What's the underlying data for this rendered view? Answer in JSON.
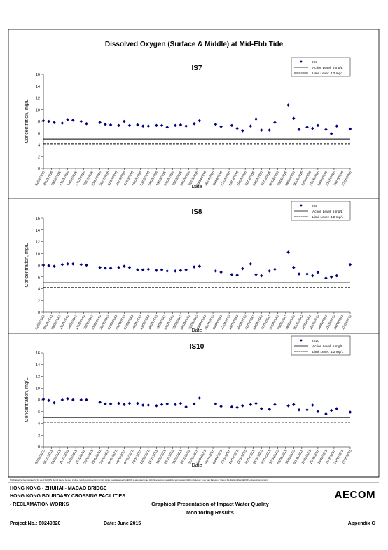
{
  "document": {
    "title": "Dissolved Oxygen (Surface & Middle) at Mid-Ebb Tide"
  },
  "chart_data": [
    {
      "type": "scatter",
      "title": "IS7",
      "xlabel": "Date",
      "ylabel": "Concentration, mg/L",
      "x": [
        "02/02/2015",
        "04/02/2015",
        "06/02/2015",
        "09/02/2015",
        "11/02/2015",
        "13/02/2015",
        "16/02/2015",
        "18/02/2015",
        "23/02/2015",
        "25/02/2015",
        "27/02/2015",
        "02/03/2015",
        "04/03/2015",
        "06/03/2015",
        "09/03/2015",
        "11/03/2015",
        "13/03/2015",
        "16/03/2015",
        "18/03/2015",
        "20/03/2015",
        "23/03/2015",
        "25/03/2015",
        "27/03/2015",
        "30/03/2015",
        "01/04/2015",
        "07/04/2015",
        "09/04/2015",
        "13/04/2015",
        "15/04/2015",
        "17/04/2015",
        "20/04/2015",
        "22/04/2015",
        "24/04/2015",
        "27/04/2015",
        "29/04/2015",
        "04/05/2015",
        "06/05/2015",
        "08/05/2015",
        "11/05/2015",
        "13/05/2015",
        "15/05/2015",
        "18/05/2015",
        "20/05/2015",
        "22/05/2015",
        "27/05/2015"
      ],
      "series": [
        {
          "name": "IS7",
          "color": "#000080",
          "values": [
            8.1,
            8.0,
            7.8,
            7.7,
            8.3,
            8.2,
            8.0,
            7.6,
            7.8,
            7.5,
            7.4,
            7.3,
            8.0,
            7.3,
            7.4,
            7.2,
            7.2,
            7.3,
            7.3,
            7.0,
            7.3,
            7.4,
            7.2,
            7.6,
            8.1,
            7.5,
            7.1,
            7.3,
            6.8,
            6.4,
            7.2,
            8.4,
            6.5,
            6.5,
            7.8,
            10.8,
            8.5,
            6.6,
            7.0,
            6.8,
            7.3,
            6.6,
            5.9,
            7.2,
            6.7
          ]
        }
      ],
      "reference_lines": [
        {
          "name": "Action Level: 5 mg/L",
          "value": 5,
          "style": "solid"
        },
        {
          "name": "Limit Level: 4.2 mg/L",
          "value": 4.2,
          "style": "dashed"
        }
      ],
      "xlim": [
        "02/02/2015",
        "27/05/2015"
      ],
      "xticks": [
        "02/02/2015",
        "05/02/2015",
        "08/02/2015",
        "11/02/2015",
        "14/02/2015",
        "17/02/2015",
        "20/02/2015",
        "23/02/2015",
        "26/02/2015",
        "01/03/2015",
        "04/03/2015",
        "07/03/2015",
        "10/03/2015",
        "13/03/2015",
        "16/03/2015",
        "19/03/2015",
        "22/03/2015",
        "25/03/2015",
        "28/03/2015",
        "31/03/2015",
        "03/04/2015",
        "06/04/2015",
        "09/04/2015",
        "12/04/2015",
        "15/04/2015",
        "18/04/2015",
        "21/04/2015",
        "24/04/2015",
        "27/04/2015",
        "30/04/2015",
        "03/05/2015",
        "06/05/2015",
        "09/05/2015",
        "12/05/2015",
        "15/05/2015",
        "18/05/2015",
        "21/05/2015",
        "24/05/2015",
        "27/05/2015"
      ],
      "ylim": [
        0,
        16
      ],
      "yticks": [
        0,
        2,
        4,
        6,
        8,
        10,
        12,
        14,
        16
      ],
      "legend": "upper right"
    },
    {
      "type": "scatter",
      "title": "IS8",
      "xlabel": "Date",
      "ylabel": "Concentration, mg/L",
      "x": [
        "02/02/2015",
        "04/02/2015",
        "06/02/2015",
        "09/02/2015",
        "11/02/2015",
        "13/02/2015",
        "16/02/2015",
        "18/02/2015",
        "23/02/2015",
        "25/02/2015",
        "27/02/2015",
        "02/03/2015",
        "04/03/2015",
        "06/03/2015",
        "09/03/2015",
        "11/03/2015",
        "13/03/2015",
        "16/03/2015",
        "18/03/2015",
        "20/03/2015",
        "23/03/2015",
        "25/03/2015",
        "27/03/2015",
        "30/03/2015",
        "01/04/2015",
        "07/04/2015",
        "09/04/2015",
        "13/04/2015",
        "15/04/2015",
        "17/04/2015",
        "20/04/2015",
        "22/04/2015",
        "24/04/2015",
        "27/04/2015",
        "29/04/2015",
        "04/05/2015",
        "06/05/2015",
        "08/05/2015",
        "11/05/2015",
        "13/05/2015",
        "15/05/2015",
        "18/05/2015",
        "20/05/2015",
        "22/05/2015",
        "27/05/2015"
      ],
      "series": [
        {
          "name": "IS8",
          "color": "#000080",
          "values": [
            8.0,
            7.9,
            7.8,
            8.1,
            8.2,
            8.2,
            8.1,
            8.0,
            7.6,
            7.5,
            7.5,
            7.6,
            7.8,
            7.6,
            7.2,
            7.2,
            7.3,
            7.1,
            7.2,
            7.0,
            7.0,
            7.1,
            7.2,
            7.7,
            7.8,
            7.0,
            6.8,
            6.4,
            6.3,
            7.4,
            8.2,
            6.4,
            6.2,
            7.0,
            7.3,
            10.2,
            7.6,
            6.5,
            6.5,
            6.2,
            6.8,
            5.8,
            6.0,
            6.2,
            8.1
          ]
        }
      ],
      "reference_lines": [
        {
          "name": "Action Level: 5 mg/L",
          "value": 5,
          "style": "solid"
        },
        {
          "name": "Limit Level: 4.2 mg/L",
          "value": 4.2,
          "style": "dashed"
        }
      ],
      "xlim": [
        "02/02/2015",
        "27/05/2015"
      ],
      "xticks": [
        "02/02/2015",
        "05/02/2015",
        "08/02/2015",
        "11/02/2015",
        "14/02/2015",
        "17/02/2015",
        "20/02/2015",
        "23/02/2015",
        "26/02/2015",
        "01/03/2015",
        "04/03/2015",
        "07/03/2015",
        "10/03/2015",
        "13/03/2015",
        "16/03/2015",
        "19/03/2015",
        "22/03/2015",
        "25/03/2015",
        "28/03/2015",
        "31/03/2015",
        "03/04/2015",
        "06/04/2015",
        "09/04/2015",
        "12/04/2015",
        "15/04/2015",
        "18/04/2015",
        "21/04/2015",
        "24/04/2015",
        "27/04/2015",
        "30/04/2015",
        "03/05/2015",
        "06/05/2015",
        "09/05/2015",
        "12/05/2015",
        "15/05/2015",
        "18/05/2015",
        "21/05/2015",
        "24/05/2015",
        "27/05/2015"
      ],
      "ylim": [
        0,
        16
      ],
      "yticks": [
        0,
        2,
        4,
        6,
        8,
        10,
        12,
        14,
        16
      ],
      "legend": "upper right"
    },
    {
      "type": "scatter",
      "title": "IS10",
      "xlabel": "Date",
      "ylabel": "Concentration, mg/L",
      "x": [
        "02/02/2015",
        "04/02/2015",
        "06/02/2015",
        "09/02/2015",
        "11/02/2015",
        "13/02/2015",
        "16/02/2015",
        "18/02/2015",
        "23/02/2015",
        "25/02/2015",
        "27/02/2015",
        "02/03/2015",
        "04/03/2015",
        "06/03/2015",
        "09/03/2015",
        "11/03/2015",
        "13/03/2015",
        "16/03/2015",
        "18/03/2015",
        "20/03/2015",
        "23/03/2015",
        "25/03/2015",
        "27/03/2015",
        "30/03/2015",
        "01/04/2015",
        "07/04/2015",
        "09/04/2015",
        "13/04/2015",
        "15/04/2015",
        "17/04/2015",
        "20/04/2015",
        "22/04/2015",
        "24/04/2015",
        "27/04/2015",
        "29/04/2015",
        "04/05/2015",
        "06/05/2015",
        "08/05/2015",
        "11/05/2015",
        "13/05/2015",
        "15/05/2015",
        "18/05/2015",
        "20/05/2015",
        "22/05/2015",
        "27/05/2015"
      ],
      "series": [
        {
          "name": "IS10",
          "color": "#000080",
          "values": [
            8.1,
            7.9,
            7.5,
            8.0,
            8.2,
            8.0,
            8.0,
            8.0,
            7.6,
            7.3,
            7.3,
            7.4,
            7.2,
            7.4,
            7.4,
            7.1,
            7.1,
            7.0,
            7.2,
            7.3,
            7.2,
            7.4,
            6.8,
            7.3,
            8.3,
            7.3,
            6.9,
            6.8,
            6.7,
            7.0,
            7.2,
            7.4,
            6.5,
            6.4,
            7.2,
            7.0,
            7.2,
            6.3,
            6.3,
            7.1,
            6.0,
            5.6,
            6.2,
            6.5,
            5.9
          ]
        }
      ],
      "reference_lines": [
        {
          "name": "Action Level: 5 mg/L",
          "value": 5,
          "style": "solid"
        },
        {
          "name": "Limit Level: 4.2 mg/L",
          "value": 4.2,
          "style": "dashed"
        }
      ],
      "xlim": [
        "02/02/2015",
        "27/05/2015"
      ],
      "xticks": [
        "02/02/2015",
        "05/02/2015",
        "08/02/2015",
        "11/02/2015",
        "14/02/2015",
        "17/02/2015",
        "20/02/2015",
        "23/02/2015",
        "26/02/2015",
        "01/03/2015",
        "04/03/2015",
        "07/03/2015",
        "10/03/2015",
        "13/03/2015",
        "16/03/2015",
        "19/03/2015",
        "22/03/2015",
        "25/03/2015",
        "28/03/2015",
        "31/03/2015",
        "03/04/2015",
        "06/04/2015",
        "09/04/2015",
        "12/04/2015",
        "15/04/2015",
        "18/04/2015",
        "21/04/2015",
        "24/04/2015",
        "27/04/2015",
        "30/04/2015",
        "03/05/2015",
        "06/05/2015",
        "09/05/2015",
        "12/05/2015",
        "15/05/2015",
        "18/05/2015",
        "21/05/2015",
        "24/05/2015",
        "27/05/2015"
      ],
      "ylim": [
        0,
        16
      ],
      "yticks": [
        0,
        2,
        4,
        6,
        8,
        10,
        12,
        14,
        16
      ],
      "legend": "upper right"
    }
  ],
  "footer": {
    "disclaimer": "This Drawing has been prepared for the use of AECOM's client. It may not be used, modified, reproduced or relied upon by third parties, except as agreed by AECOM or as required by law. AECOM accepts no responsibility, and denies any liability whatsoever, to any party that uses or relies on this drawing without AECOM's express written consent.",
    "project_lines": [
      "HONG KONG - ZHUHAI - MACAO BRIDGE",
      "HONG KONG BOUNDARY CROSSING FACILITIES",
      "- RECLAMATION WORKS"
    ],
    "drawing_title": [
      "Graphical Presentation of Impact Water Quality",
      "Monitoring Results"
    ],
    "logo": "AECOM",
    "project_no": "Project No.: 60249820",
    "date": "Date: June 2015",
    "appendix": "Appendix G"
  }
}
